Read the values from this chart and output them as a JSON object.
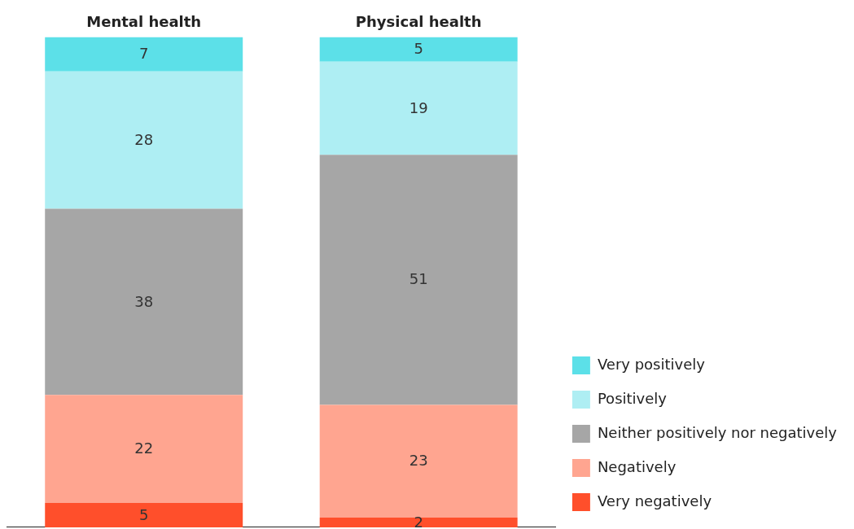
{
  "chart_data": {
    "type": "bar",
    "stacked": true,
    "data_labels": true,
    "legend": "bottom right",
    "grid": false,
    "categories": [
      "Mental health",
      "Physical health"
    ],
    "series": [
      {
        "name": "Very negatively",
        "color": "#ff4f2b",
        "values": [
          5,
          2
        ]
      },
      {
        "name": "Negatively",
        "color": "#ffa590",
        "values": [
          22,
          23
        ]
      },
      {
        "name": "Neither positively nor negatively",
        "color": "#a6a6a6",
        "values": [
          38,
          51
        ]
      },
      {
        "name": "Positively",
        "color": "#aeeef3",
        "values": [
          28,
          19
        ]
      },
      {
        "name": "Very positively",
        "color": "#5ce0e8",
        "values": [
          7,
          5
        ]
      }
    ]
  }
}
